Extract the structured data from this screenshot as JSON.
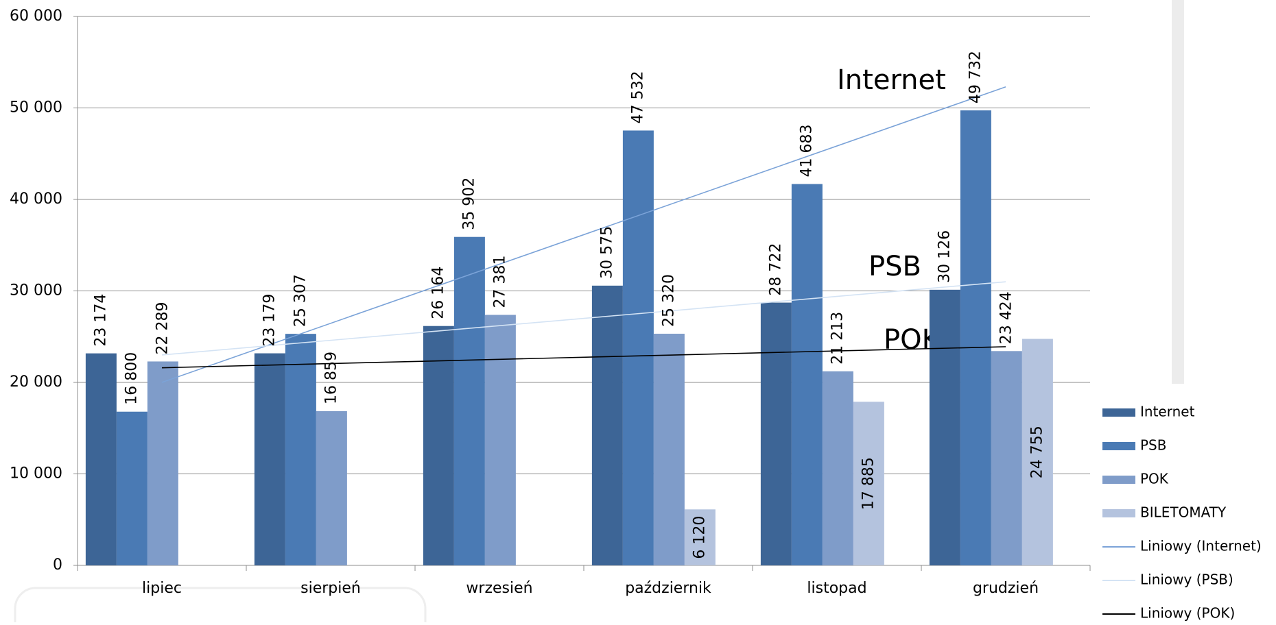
{
  "chart_data": {
    "type": "bar",
    "categories": [
      "lipiec",
      "sierpień",
      "wrzesień",
      "październik",
      "listopad",
      "grudzień"
    ],
    "series": [
      {
        "name": "Internet",
        "color": "#3d6596",
        "values": [
          23174,
          23179,
          26164,
          30575,
          28722,
          30126
        ],
        "value_labels": [
          "23 174",
          "23 179",
          "26 164",
          "30 575",
          "28 722",
          "30 126"
        ]
      },
      {
        "name": "PSB",
        "color": "#4a7ab4",
        "values": [
          16800,
          25307,
          35902,
          47532,
          41683,
          49732
        ],
        "value_labels": [
          "16 800",
          "25 307",
          "35 902",
          "47 532",
          "41 683",
          "49 732"
        ]
      },
      {
        "name": "POK",
        "color": "#7f9cc9",
        "values": [
          22289,
          16859,
          27381,
          25320,
          21213,
          23424
        ],
        "value_labels": [
          "22 289",
          "16 859",
          "27 381",
          "25 320",
          "21 213",
          "23 424"
        ]
      },
      {
        "name": "BILETOMATY",
        "color": "#b4c3de",
        "values": [
          null,
          null,
          null,
          6120,
          17885,
          24755
        ],
        "value_labels": [
          null,
          null,
          null,
          "6 120",
          "17 885",
          "24 755"
        ]
      }
    ],
    "trendlines": [
      {
        "name": "Liniowy (Internet)",
        "color": "#7ba3d8",
        "values": [
          20000,
          52300
        ]
      },
      {
        "name": "Liniowy (PSB)",
        "color": "#d4e3f4",
        "values": [
          23000,
          31000
        ]
      },
      {
        "name": "Liniowy (POK)",
        "color": "#000000",
        "values": [
          21600,
          23900
        ]
      }
    ],
    "annotations": [
      "Internet",
      "PSB",
      "POK"
    ],
    "ylim": [
      0,
      60000
    ],
    "yticks": [
      0,
      {
        "value": 10000,
        "label": "10 000"
      },
      {
        "value": 20000,
        "label": "20 000"
      },
      {
        "value": 30000,
        "label": "30 000"
      },
      {
        "value": 40000,
        "label": "40 000"
      },
      {
        "value": 50000,
        "label": "50 000"
      },
      {
        "value": 60000,
        "label": "60 000"
      }
    ],
    "grid": true
  }
}
